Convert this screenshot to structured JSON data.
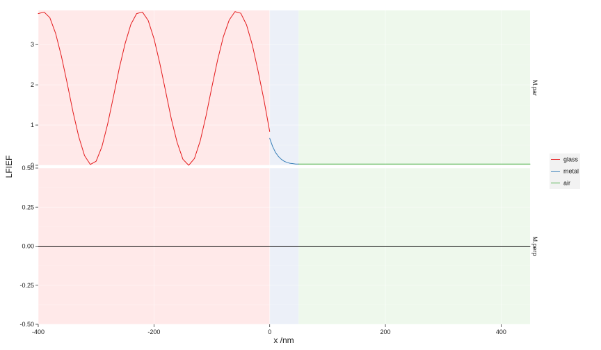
{
  "chart_data": {
    "type": "line",
    "xlabel": "x /nm",
    "ylabel": "LFIEF",
    "x_ticks": [
      -400,
      -200,
      0,
      200,
      400
    ],
    "x_tick_labels": [
      "-400",
      "-200",
      "0",
      "200",
      "400"
    ],
    "xlim": [
      -400,
      450
    ],
    "regions": [
      {
        "name": "glass",
        "x_from": -400,
        "x_to": 0,
        "fill": "#ffe9e9"
      },
      {
        "name": "metal",
        "x_from": 0,
        "x_to": 50,
        "fill": "#ecf0f8"
      },
      {
        "name": "air",
        "x_from": 50,
        "x_to": 450,
        "fill": "#eef8ec"
      }
    ],
    "legend": {
      "position": "right",
      "entries": [
        {
          "label": "glass",
          "color": "#e41a1c"
        },
        {
          "label": "metal",
          "color": "#377eb8"
        },
        {
          "label": "air",
          "color": "#4daf4a"
        }
      ]
    },
    "panels": [
      {
        "strip_label": "M.par",
        "ylim": [
          0,
          3.85
        ],
        "y_ticks": [
          0,
          1,
          2,
          3
        ],
        "y_tick_labels": [
          "0",
          "1",
          "2",
          "3"
        ],
        "series": [
          {
            "name": "glass",
            "color": "#e41a1c",
            "x": [
              -400,
              -390,
              -380,
              -370,
              -360,
              -350,
              -340,
              -330,
              -320,
              -310,
              -300,
              -290,
              -280,
              -270,
              -260,
              -250,
              -240,
              -230,
              -220,
              -210,
              -200,
              -190,
              -180,
              -170,
              -160,
              -150,
              -140,
              -130,
              -120,
              -110,
              -100,
              -90,
              -80,
              -70,
              -60,
              -50,
              -40,
              -30,
              -20,
              -10,
              0
            ],
            "y": [
              3.77,
              3.81,
              3.67,
              3.28,
              2.71,
              2.04,
              1.33,
              0.71,
              0.24,
              0.02,
              0.1,
              0.46,
              1.03,
              1.71,
              2.41,
              3.02,
              3.5,
              3.77,
              3.81,
              3.6,
              3.15,
              2.54,
              1.85,
              1.15,
              0.57,
              0.15,
              0.0,
              0.17,
              0.61,
              1.23,
              1.94,
              2.62,
              3.2,
              3.61,
              3.82,
              3.78,
              3.49,
              2.99,
              2.34,
              1.63,
              0.84
            ]
          },
          {
            "name": "metal",
            "color": "#377eb8",
            "x": [
              0,
              5,
              10,
              15,
              20,
              25,
              30,
              35,
              40,
              45,
              50
            ],
            "y": [
              0.67,
              0.47,
              0.32,
              0.22,
              0.15,
              0.1,
              0.07,
              0.05,
              0.04,
              0.03,
              0.03
            ]
          },
          {
            "name": "air",
            "color": "#4daf4a",
            "x": [
              50,
              450
            ],
            "y": [
              0.03,
              0.03
            ]
          }
        ]
      },
      {
        "strip_label": "M.perp",
        "ylim": [
          -0.5,
          0.5
        ],
        "y_ticks": [
          -0.5,
          -0.25,
          0,
          0.25,
          0.5
        ],
        "y_tick_labels": [
          "-0.50",
          "-0.25",
          "0.00",
          "0.25",
          "0.50"
        ],
        "series": [
          {
            "name": "glass",
            "color": "#000000",
            "x": [
              -400,
              450
            ],
            "y": [
              0,
              0
            ]
          }
        ]
      }
    ]
  }
}
